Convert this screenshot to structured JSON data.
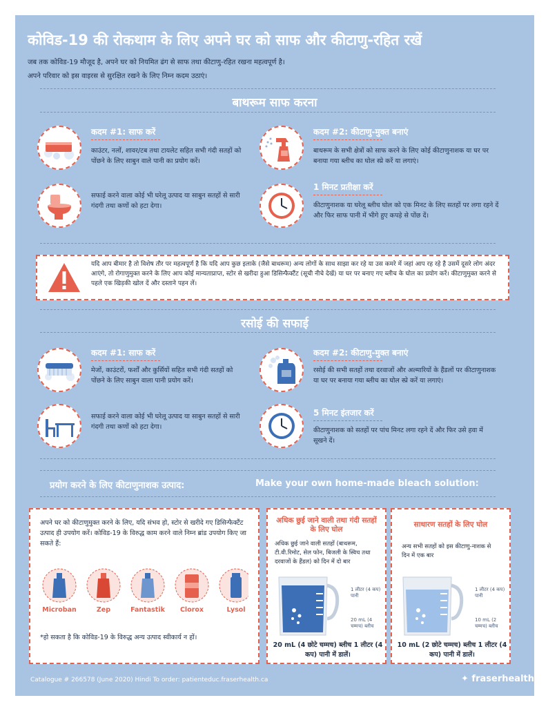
{
  "title": "कोविड-19 की रोकथाम के लिए अपने घर को साफ और कीटाणु-रहित रखें",
  "intro": [
    "जब तक कोविड-19 मौजूद है, अपने घर को नियमित ढंग से साफ तथा कीटाणु-रहित रखना महत्वपूर्ण है।",
    "अपने परिवार को इस वाइरस से सुरक्षित रखने के लिए निम्न कदम उठाएं।"
  ],
  "bathroom": {
    "title": "बाथरूम साफ करना",
    "steps": [
      {
        "head": "कदम #1: साफ करें",
        "text": "काउंटर, नलों, शावर/टब तथा टायलेट सहित सभी गंदी सतहों को पोंछने के लिए साबुन वाले पानी का प्रयोग करें।",
        "icon": "soapy-sponge-icon"
      },
      {
        "head": "",
        "text": "सफाई करने वाला कोई भी घरेलू उत्पाद या साबुन सतहों से सारी गंदगी तथा कणों को हटा देगा।",
        "icon": "toilet-icon"
      },
      {
        "head": "कदम #2: कीटाणु-मुक्त बनाएं",
        "text": "बाथरूम के सभी क्षेत्रों को साफ करने के लिए कोई कीटाणुनाशक या घर पर बनाया गया ब्लीच का घोल स्प्रे करें या लगाएं।",
        "icon": "spray-bottle-icon"
      },
      {
        "head": "1 मिनट प्रतीक्षा करें",
        "text": "कीटाणुनाशक या घरेलू ब्लीच घोल को एक मिनट के लिए सतहों पर लगा रहने दें और फिर साफ पानी में भीगे हुए कपड़े से पोंछ दें।",
        "icon": "clock-icon"
      }
    ]
  },
  "warning": {
    "icon": "warning-triangle-icon",
    "text": "यदि आप बीमार है तो विशेष तौर पर महत्वपूर्ण है कि यदि आप कुछ इलाके (जैसे बाथरूम) अन्य लोगों के साथ साझा कर रहे या उस कमरे में जहां आप रह रहे है उसमें दूसरे लोग अंदर आएंगे, तो रोगाणुमुक्त करने के लिए आप कोई मान्यताप्राप्त, स्टोर से खरीदा हुआ डिसिन्फैक्टैंट (सूची नीचे देखें) या घर पर बनाए गए ब्लीच के घोल का प्रयोग करें। कीटाणुमुक्त करने से पहले एक खिड़की खोल दें और दस्ताने पहन लें।"
  },
  "kitchen": {
    "title": "रसोई की सफाई",
    "steps": [
      {
        "head": "कदम #1: साफ करें",
        "text": "मेजों, काउंटरों, फर्शों और कुर्सियों सहित सभी गंदी सतहों को पोंछने के लिए साबुन वाला पानी प्रयोग करें।",
        "icon": "scrub-brush-icon"
      },
      {
        "head": "",
        "text": "सफाई करने वाला कोई भी घरेलू उत्पाद या साबुन सतहों से सारी गंदगी तथा कणों को हटा देगा।",
        "icon": "table-chair-icon"
      },
      {
        "head": "कदम #2: कीटाणु-मुक्त बनाएं",
        "text": "रसोई की सभी सतहों तथा दरवाजों और अल्मारियों के हैंडलों पर कीटाणुनाशक या घर पर बनाया गया ब्लीच का घोल स्प्रे करें या लगाएं।",
        "icon": "bleach-jug-icon"
      },
      {
        "head": "5 मिनट इंतजार करें",
        "text": "कीटाणुनाशक को सतहों पर पांच मिनट लगा रहने दें और फिर उसे हवा में सूखने दें।",
        "icon": "clock-icon"
      }
    ]
  },
  "products_heading": "प्रयोग करने के लिए कीटाणुनाशक उत्पाद:",
  "bleach_heading": "Make your own home-made bleach solution:",
  "products": {
    "text": "अपने घर को कीटाणुमुक्त करने के लिए, यदि संभव हो, स्टोर से खरीदे गए डिसिन्फैक्टैंट उत्पाद ही उपयोग करें। कोविड-19 के विरुद्ध काम करने वाले निम्न ब्रांड उपयोग किए जा सकते हैं:",
    "brands": [
      "Microban",
      "Zep",
      "Fantastik",
      "Clorox",
      "Lysol"
    ],
    "note": "*हो सकता है कि कोविड-19 के विरुद्ध अन्य उत्पाद स्वीकार्य न हों।"
  },
  "high_touch": {
    "title": "अधिक छुई जाने वाली तथा गंदी सतहों के लिए घोल",
    "text": "अधिक छुई जाने वाली सतहों (बाथरूम, टी.वी.रिमोट, सेल फोन, बिजली के स्विच तथा दरवाजों के हैंडल) को दिन में दो बार",
    "water_label": "1 लीटर (4 कप) पानी",
    "bleach_label": "20 mL (4 चम्मच) ब्लीच",
    "bottom": "20 mL (4 छोटे चम्मच) ब्लीच 1 लीटर (4 कप) पानी में डालें।"
  },
  "general": {
    "title": "साधारण सतहों के लिए घोल",
    "text": "अन्य सभी सतहों को इस कीटाणु-नाशक से दिन में एक बार",
    "water_label": "1 लीटर (4 कप) पानी",
    "bleach_label": "10 mL (2 चम्मच) ब्लीच",
    "bottom": "10 mL (2 छोटे चम्मच) ब्लीच 1 लीटर (4 कप) पानी में डालें।"
  },
  "footer": "Catalogue # 266578 (June 2020) Hindi  To order: patienteduc.fraserhealth.ca",
  "logo": "fraserhealth",
  "colors": {
    "background": "#a9c3e3",
    "accent": "#e5614e",
    "text": "#1f2f46",
    "jar_blue": "#3d6fb6"
  }
}
